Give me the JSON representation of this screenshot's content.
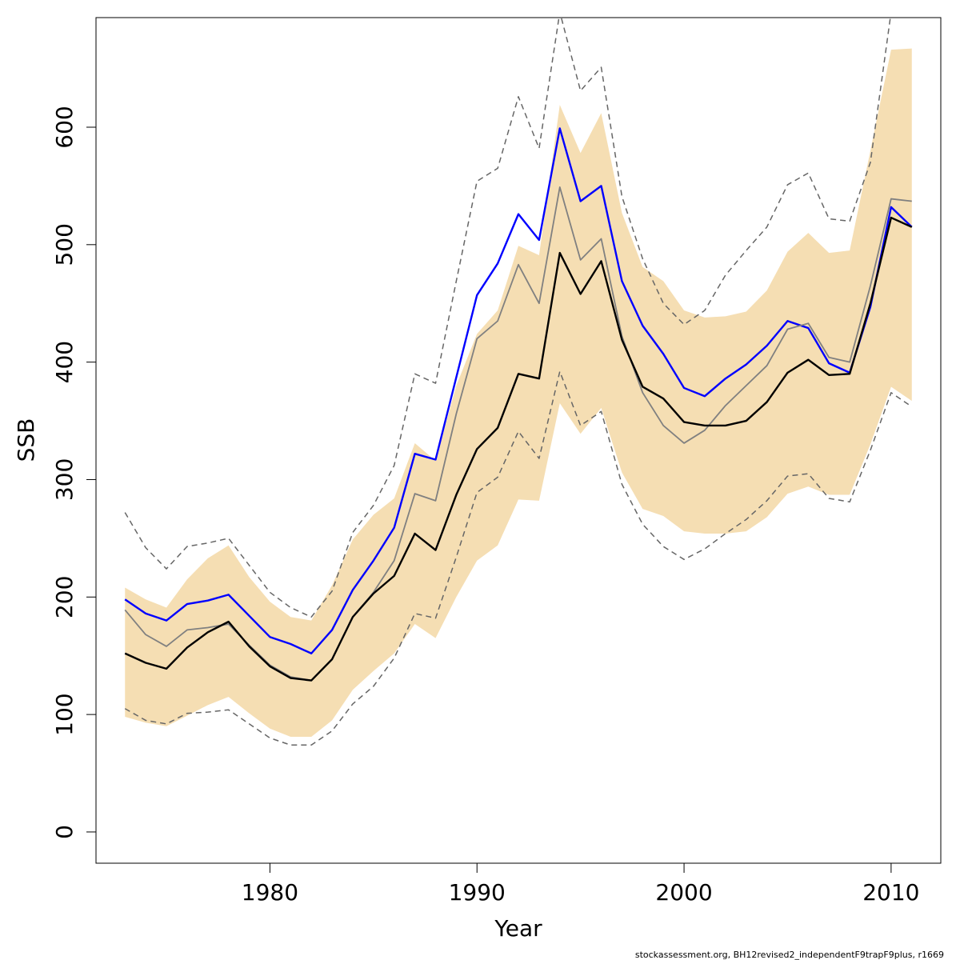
{
  "chart_data": {
    "type": "line",
    "xlabel": "Year",
    "ylabel": "SSB",
    "xlim": [
      1971.6,
      2012.4
    ],
    "ylim": [
      -26.6,
      693.3
    ],
    "x_ticks": [
      1980,
      1990,
      2000,
      2010
    ],
    "y_ticks": [
      0,
      100,
      200,
      300,
      400,
      500,
      600
    ],
    "grid": false,
    "legend": "none",
    "footnote": "stockassessment.org, BH12revised2_independentF9trapF9plus, r1669",
    "x": [
      1973,
      1974,
      1975,
      1976,
      1977,
      1978,
      1979,
      1980,
      1981,
      1982,
      1983,
      1984,
      1985,
      1986,
      1987,
      1988,
      1989,
      1990,
      1991,
      1992,
      1993,
      1994,
      1995,
      1996,
      1997,
      1998,
      1999,
      2000,
      2001,
      2002,
      2003,
      2004,
      2005,
      2006,
      2007,
      2008,
      2009,
      2010,
      2011
    ],
    "band": {
      "color": "#F5DEB3",
      "lower": [
        98,
        93,
        90,
        99,
        108,
        115,
        101,
        88,
        81,
        81,
        95,
        121,
        137,
        152,
        177,
        165,
        200,
        231,
        244,
        283,
        282,
        365,
        339,
        361,
        306,
        275,
        269,
        256,
        254,
        254,
        256,
        268,
        288,
        294,
        287,
        287,
        330,
        379,
        367
      ],
      "upper": [
        208,
        198,
        191,
        215,
        233,
        244,
        217,
        196,
        183,
        180,
        210,
        249,
        270,
        284,
        331,
        316,
        380,
        424,
        444,
        499,
        491,
        619,
        578,
        612,
        527,
        481,
        469,
        444,
        438,
        439,
        443,
        461,
        494,
        510,
        493,
        495,
        580,
        666,
        667
      ]
    },
    "series": [
      {
        "color": "#0000FF",
        "style": "solid",
        "values": [
          198,
          186,
          180,
          194,
          197,
          202,
          184,
          166,
          160,
          152,
          172,
          206,
          231,
          259,
          322,
          317,
          387,
          457,
          484,
          526,
          504,
          599,
          537,
          550,
          469,
          431,
          407,
          378,
          371,
          386,
          398,
          414,
          435,
          429,
          399,
          391,
          447,
          532,
          515
        ]
      },
      {
        "color": "#808080",
        "style": "solid",
        "values": [
          189,
          168,
          158,
          172,
          174,
          177,
          159,
          142,
          132,
          129,
          147,
          183,
          204,
          231,
          288,
          282,
          356,
          420,
          435,
          483,
          450,
          549,
          487,
          505,
          422,
          374,
          346,
          331,
          342,
          363,
          380,
          397,
          428,
          433,
          404,
          400,
          465,
          539,
          537
        ]
      },
      {
        "color": "#000000",
        "style": "solid",
        "values": [
          152,
          144,
          139,
          157,
          170,
          179,
          158,
          141,
          131,
          129,
          147,
          183,
          203,
          218,
          254,
          240,
          287,
          326,
          344,
          390,
          386,
          493,
          458,
          486,
          419,
          379,
          369,
          349,
          346,
          346,
          350,
          366,
          391,
          402,
          389,
          390,
          450,
          523,
          515
        ]
      },
      {
        "color": "#666666",
        "style": "dashed",
        "values": [
          272,
          242,
          224,
          243,
          246,
          250,
          227,
          204,
          191,
          183,
          205,
          255,
          278,
          312,
          390,
          382,
          469,
          554,
          565,
          626,
          582,
          698,
          631,
          651,
          541,
          488,
          450,
          432,
          444,
          474,
          495,
          515,
          551,
          561,
          522,
          520,
          570,
          698,
          700
        ]
      },
      {
        "color": "#666666",
        "style": "dashed",
        "values": [
          105,
          95,
          92,
          101,
          102,
          104,
          92,
          80,
          74,
          74,
          86,
          109,
          124,
          148,
          186,
          182,
          234,
          289,
          302,
          341,
          318,
          392,
          346,
          358,
          296,
          262,
          243,
          232,
          241,
          254,
          266,
          282,
          303,
          305,
          284,
          281,
          325,
          374,
          362
        ]
      }
    ]
  }
}
